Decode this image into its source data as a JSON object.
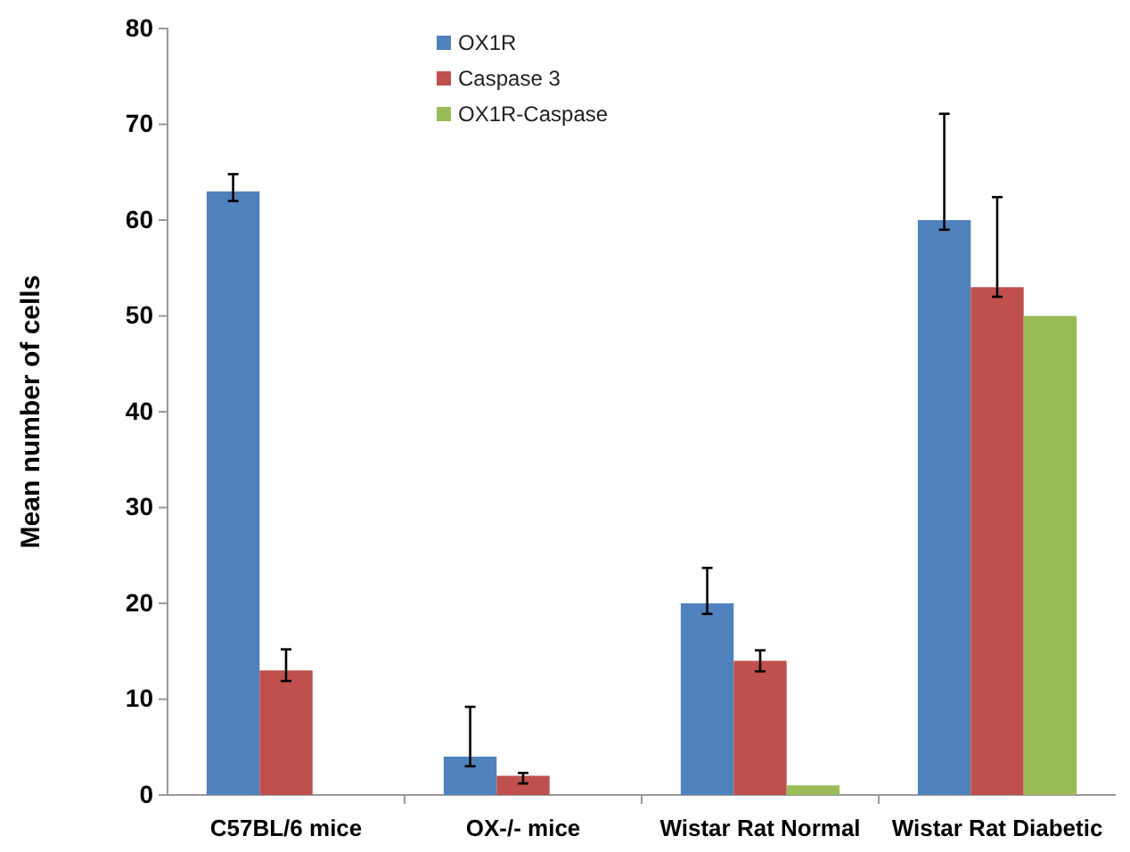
{
  "chart_data": {
    "type": "bar",
    "ylabel": "Mean number of cells",
    "categories": [
      "C57BL/6 mice",
      "OX-/-  mice",
      "Wistar Rat Normal",
      "Wistar Rat Diabetic"
    ],
    "series": [
      {
        "name": "OX1R",
        "color": "#4f81bd",
        "values": [
          63,
          4,
          20,
          60
        ],
        "errors": [
          [
            62,
            64.8
          ],
          [
            3,
            9.2
          ],
          [
            18.9,
            23.7
          ],
          [
            59,
            71.1
          ]
        ]
      },
      {
        "name": "Caspase 3",
        "color": "#c0504d",
        "values": [
          13,
          2,
          14,
          53
        ],
        "errors": [
          [
            11.9,
            15.2
          ],
          [
            1.2,
            2.3
          ],
          [
            12.9,
            15.1
          ],
          [
            52,
            62.4
          ]
        ]
      },
      {
        "name": "OX1R-Caspase",
        "color": "#9bbb59",
        "values": [
          0,
          0,
          1,
          50
        ]
      }
    ],
    "ylim": [
      0,
      80
    ],
    "yticks": [
      0,
      10,
      20,
      30,
      40,
      50,
      60,
      70,
      80
    ],
    "grid": false,
    "legend": "top"
  }
}
